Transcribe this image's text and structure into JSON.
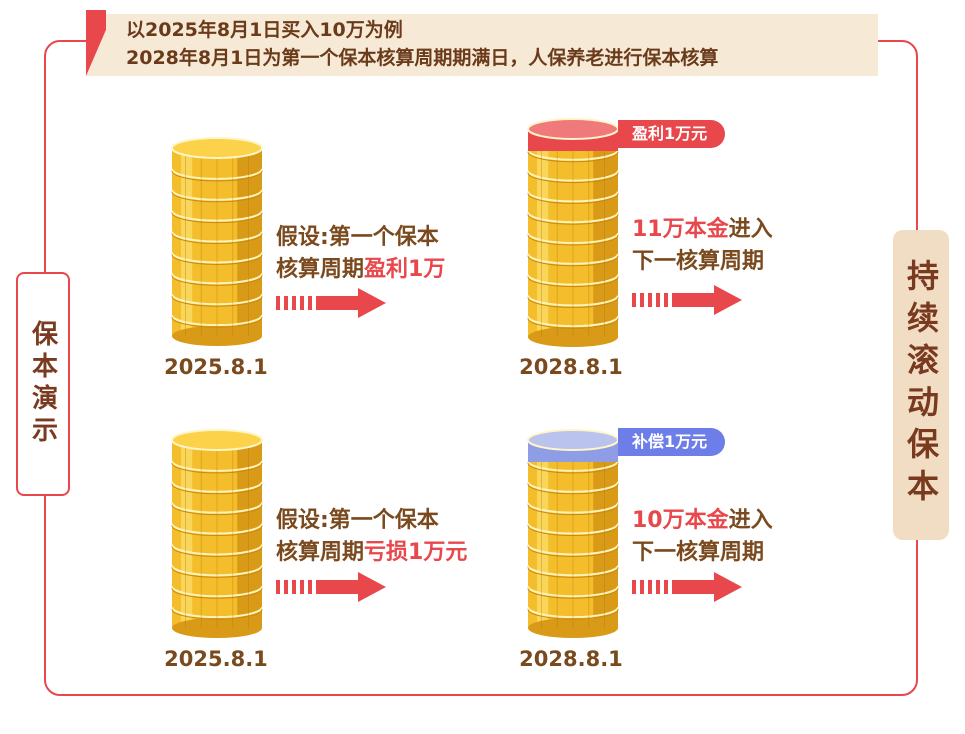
{
  "header": {
    "line1": "以2025年8月1日买入10万为例",
    "line2": "2028年8月1日为第一个保本核算周期期满日，人保养老进行保本核算"
  },
  "left_label": "保本演示",
  "right_label": "持续滚动保本",
  "scenario_top": {
    "start_date": "2025.8.1",
    "desc_line1": "假设:第一个保本",
    "desc_line2_prefix": "核算周期",
    "desc_line2_highlight": "盈利1万",
    "badge": "盈利1万元",
    "end_date": "2028.8.1",
    "result_highlight": "11万本金",
    "result_suffix": "进入",
    "result_line2": "下一核算周期"
  },
  "scenario_bottom": {
    "start_date": "2025.8.1",
    "desc_line1": "假设:第一个保本",
    "desc_line2_prefix": "核算周期",
    "desc_line2_highlight": "亏损1万元",
    "badge": "补偿1万元",
    "end_date": "2028.8.1",
    "result_highlight": "10万本金",
    "result_suffix": "进入",
    "result_line2": "下一核算周期"
  },
  "colors": {
    "accent_red": "#e8474b",
    "compensation_blue": "#6d7ee8",
    "coin_gold": "#f7c530",
    "text_brown": "#7a4a1e"
  }
}
